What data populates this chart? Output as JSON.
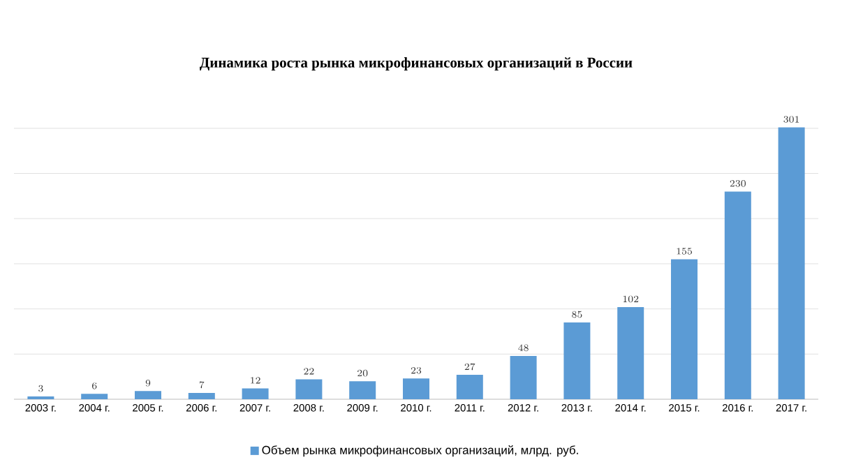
{
  "chart_data": {
    "type": "bar",
    "title": "Динамика роста рынка микрофинансовых организаций в России",
    "categories": [
      "2003 г.",
      "2004 г.",
      "2005 г.",
      "2006 г.",
      "2007 г.",
      "2008 г.",
      "2009 г.",
      "2010 г.",
      "2011 г.",
      "2012 г.",
      "2013 г.",
      "2014 г.",
      "2015 г.",
      "2016 г.",
      "2017 г."
    ],
    "series": [
      {
        "name": "Объем рынка микрофинансовых организаций, млрд. руб.",
        "color": "#5b9bd5",
        "values": [
          3,
          6,
          9,
          7,
          12,
          22,
          20,
          23,
          27,
          48,
          85,
          102,
          155,
          230,
          301
        ]
      }
    ],
    "grid": "y",
    "data_labels": true,
    "legend": "bottom",
    "tick_labels": "x"
  }
}
